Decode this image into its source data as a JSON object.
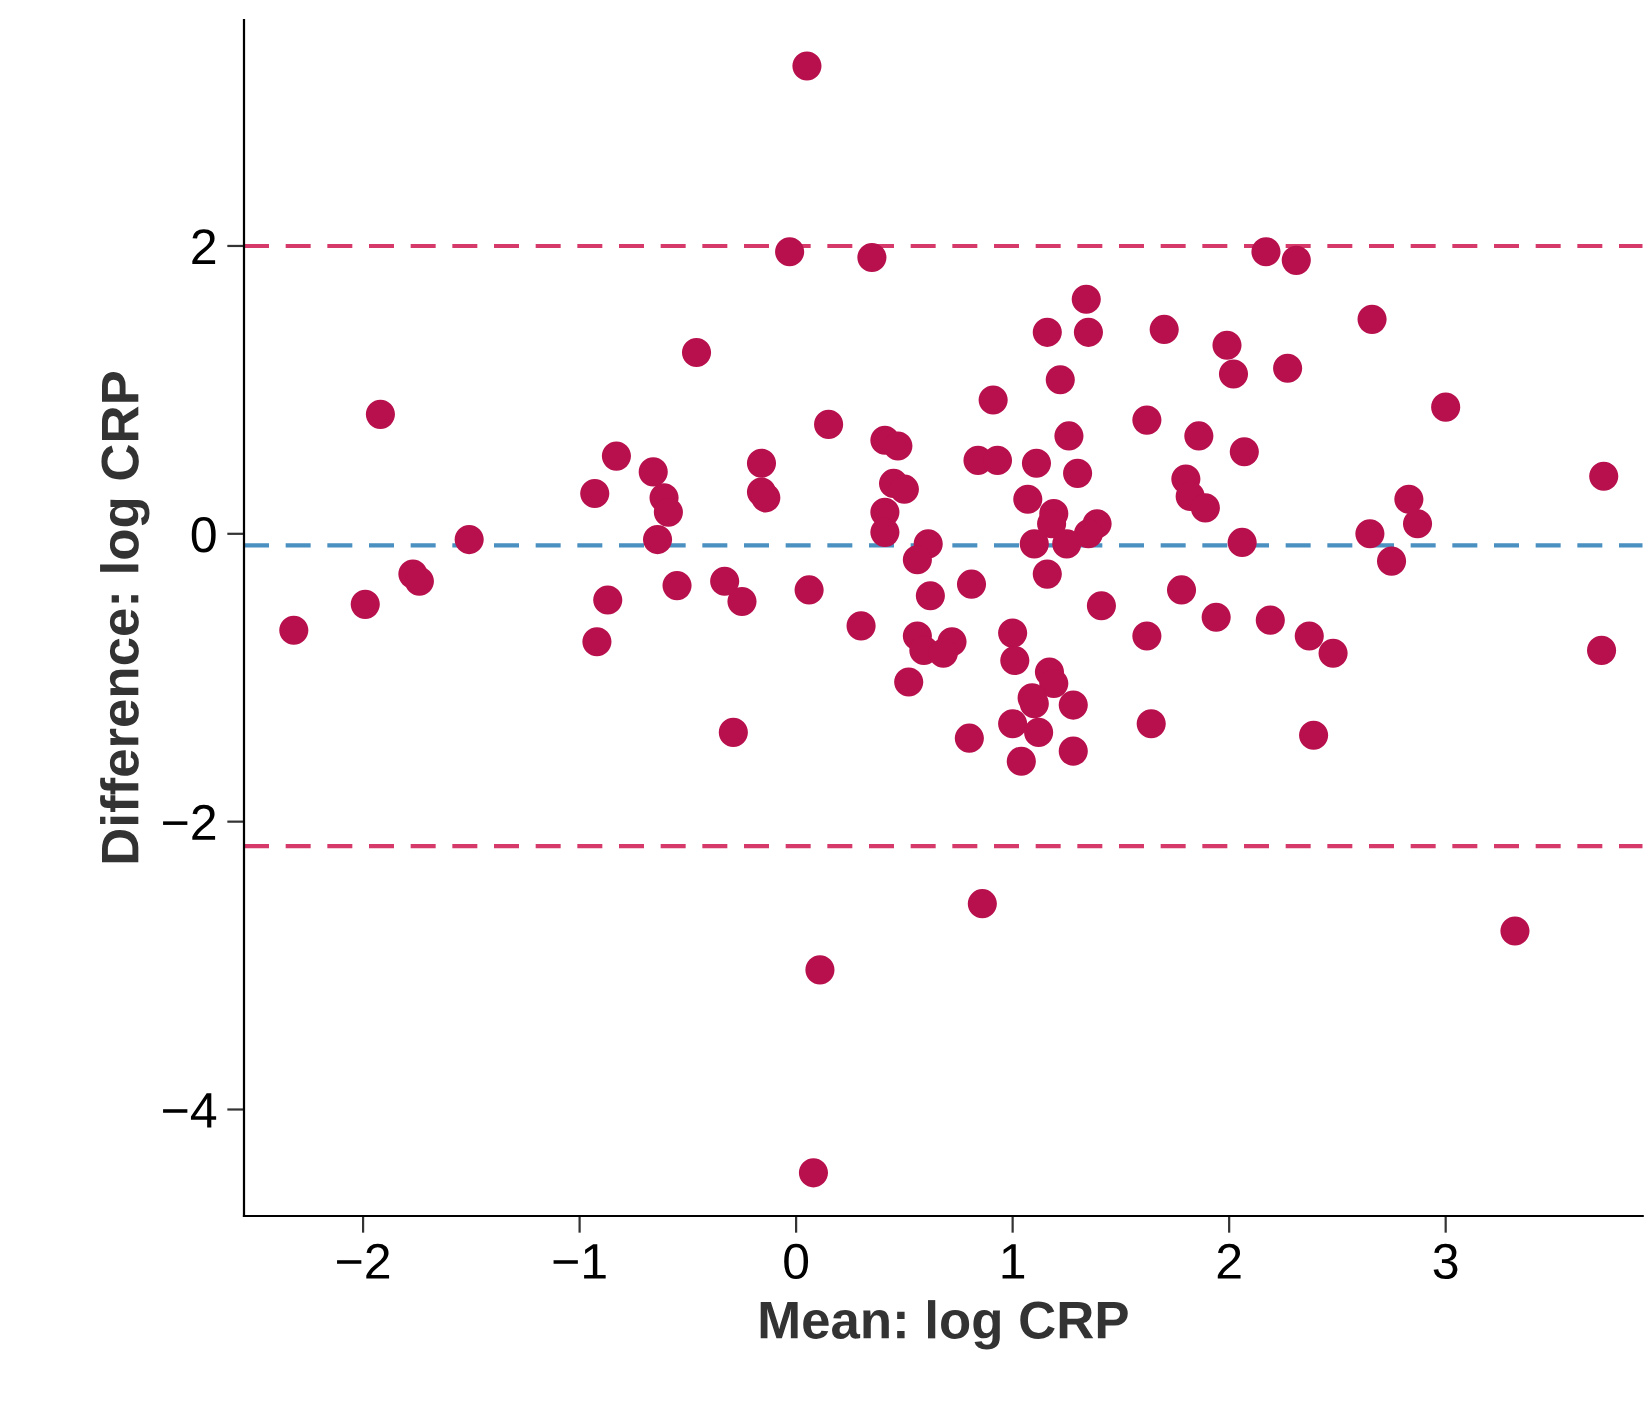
{
  "chart_data": {
    "type": "scatter",
    "xlabel": "Mean: log CRP",
    "ylabel": "Difference: log CRP",
    "xlim": [
      -2.55,
      3.91
    ],
    "ylim": [
      -4.74,
      3.57
    ],
    "xticks": [
      {
        "value": -2,
        "label": "−2"
      },
      {
        "value": -1,
        "label": "−1"
      },
      0,
      1,
      2,
      3
    ],
    "yticks": [
      {
        "value": -4,
        "label": "−4"
      },
      {
        "value": -2,
        "label": "−2"
      },
      0,
      2
    ],
    "grid": false,
    "marker": "circle",
    "ref_lines": [
      {
        "axis": "y",
        "value": 2.0,
        "color": "#d63a6a",
        "line_style": "dashed"
      },
      {
        "axis": "y",
        "value": -0.08,
        "color": "#4a90c0",
        "line_style": "dashed"
      },
      {
        "axis": "y",
        "value": -2.17,
        "color": "#d63a6a",
        "line_style": "dashed"
      }
    ],
    "series": [
      {
        "color": "#b8104c",
        "x": [
          0.05,
          -0.03,
          0.35,
          2.17,
          2.31,
          -1.92,
          -0.46,
          2.66,
          1.34,
          1.16,
          1.35,
          1.7,
          1.99,
          2.02,
          2.27,
          3.0,
          0.91,
          1.22,
          1.62,
          0.15,
          1.86,
          2.07,
          1.26,
          0.41,
          0.47,
          0.84,
          0.93,
          1.11,
          -0.83,
          -0.66,
          -0.16,
          1.3,
          0.45,
          0.5,
          1.8,
          1.82,
          1.89,
          -0.93,
          -0.61,
          -0.59,
          -0.16,
          -0.14,
          0.41,
          1.07,
          1.19,
          1.39,
          1.35,
          1.18,
          1.25,
          0.41,
          0.61,
          0.56,
          1.1,
          2.65,
          2.06,
          2.87,
          2.83,
          2.75,
          3.73,
          -1.51,
          -0.64,
          -1.77,
          -1.74,
          -1.99,
          -2.32,
          -0.87,
          -0.92,
          -0.55,
          -0.33,
          -0.25,
          0.06,
          0.3,
          0.62,
          0.81,
          1.16,
          1.41,
          1.78,
          1.94,
          2.19,
          2.37,
          2.48,
          3.72,
          1.62,
          0.56,
          0.59,
          0.72,
          0.68,
          1.0,
          1.01,
          0.52,
          1.17,
          1.19,
          1.09,
          1.1,
          1.0,
          1.28,
          1.64,
          -0.29,
          0.8,
          1.12,
          1.04,
          1.28,
          2.39,
          0.86,
          0.11,
          3.32,
          0.08
        ],
        "values": [
          3.25,
          1.96,
          1.92,
          1.96,
          1.9,
          0.83,
          1.26,
          1.49,
          1.63,
          1.4,
          1.4,
          1.42,
          1.31,
          1.11,
          1.15,
          0.88,
          0.93,
          1.07,
          0.79,
          0.76,
          0.68,
          0.57,
          0.68,
          0.65,
          0.61,
          0.51,
          0.51,
          0.49,
          0.54,
          0.43,
          0.49,
          0.42,
          0.35,
          0.31,
          0.38,
          0.26,
          0.18,
          0.28,
          0.25,
          0.15,
          0.29,
          0.25,
          0.15,
          0.24,
          0.14,
          0.07,
          0.0,
          0.07,
          -0.07,
          0.01,
          -0.07,
          -0.18,
          -0.07,
          0.0,
          -0.06,
          0.07,
          0.24,
          -0.19,
          0.4,
          -0.04,
          -0.04,
          -0.28,
          -0.33,
          -0.49,
          -0.67,
          -0.46,
          -0.75,
          -0.36,
          -0.33,
          -0.47,
          -0.39,
          -0.64,
          -0.43,
          -0.35,
          -0.28,
          -0.5,
          -0.39,
          -0.58,
          -0.6,
          -0.71,
          -0.83,
          -0.81,
          -0.71,
          -0.71,
          -0.81,
          -0.75,
          -0.83,
          -0.69,
          -0.88,
          -1.03,
          -0.96,
          -1.04,
          -1.14,
          -1.18,
          -1.32,
          -1.19,
          -1.32,
          -1.38,
          -1.42,
          -1.38,
          -1.58,
          -1.51,
          -1.4,
          -2.57,
          -3.03,
          -2.76,
          -4.44
        ]
      }
    ]
  }
}
